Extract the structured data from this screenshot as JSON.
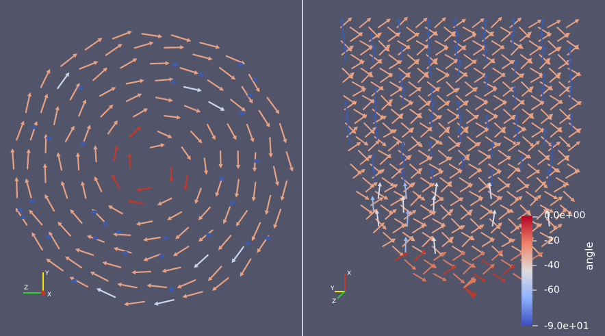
{
  "colorbar": {
    "title": "angle",
    "tick_labels": [
      "0.0e+00",
      "-20",
      "-40",
      "-60",
      "-9.0e+01"
    ],
    "tick_values": [
      0,
      -20,
      -40,
      -60,
      -90
    ],
    "range": [
      -90,
      0
    ],
    "colormap": {
      "low": "#3b4cc0",
      "mid": "#dddddd",
      "high": "#b40426"
    }
  },
  "left_view": {
    "axes_labels": {
      "y": "Y",
      "z": "Z",
      "x": "X"
    }
  },
  "right_view": {
    "axes_labels": {
      "x": "X",
      "y": "Y",
      "z": "Z"
    }
  },
  "colors": {
    "background": "#525469",
    "arrow_salmon": "#e8a283",
    "arrow_blue": "#3d5bab",
    "arrow_red": "#c0392b",
    "divider": "#c9cbd6"
  }
}
